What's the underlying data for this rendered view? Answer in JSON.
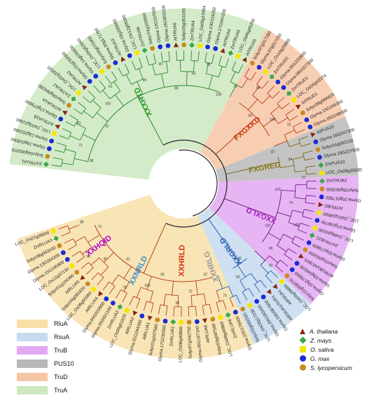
{
  "colors": {
    "RluA": "#f7dfa8",
    "RsuA": "#c6dbef",
    "TruB": "#e3a8f2",
    "PUS10": "#b8b8b8",
    "TruD": "#f7c6a6",
    "TruA": "#cde8c0",
    "outline": "#2d6a8a"
  },
  "legend_clades": [
    {
      "label": "RluA",
      "color": "#f7dfa8"
    },
    {
      "label": "RsuA",
      "color": "#c6dbef"
    },
    {
      "label": "TruB",
      "color": "#e3a8f2"
    },
    {
      "label": "PUS10",
      "color": "#b8b8b8"
    },
    {
      "label": "TruD",
      "color": "#f7c6a6"
    },
    {
      "label": "TruA",
      "color": "#cde8c0"
    }
  ],
  "legend_species": [
    {
      "label": "A. thaliana",
      "marker": "triangle",
      "color": "#8b2512"
    },
    {
      "label": "Z. mays",
      "marker": "diamond",
      "color": "#3aa84a"
    },
    {
      "label": "O. sativa",
      "marker": "square",
      "color": "#f2e600"
    },
    {
      "label": "G. max",
      "marker": "circle",
      "color": "#1a2bd6"
    },
    {
      "label": "S. lycopersicum",
      "marker": "circle",
      "color": "#c98a1e"
    }
  ],
  "clade_labels": [
    {
      "text": "XXHQID",
      "color": "#b000d8"
    },
    {
      "text": "XXNRLD",
      "color": "#3a8ec8"
    },
    {
      "text": "XXHRLD",
      "color": "#d03010"
    },
    {
      "text": "XXHRLG",
      "color": "#9a9a9a"
    },
    {
      "text": "XXGRLD",
      "color": "#2a5fb0"
    },
    {
      "text": "XXGXLD",
      "color": "#a020c0"
    },
    {
      "text": "FXGRED",
      "color": "#8a7a1a"
    },
    {
      "text": "FXGXKD",
      "color": "#c83a10"
    },
    {
      "text": "XXXRTD",
      "color": "#2a9a2a"
    }
  ],
  "leaves": [
    {
      "name": "ZmTRUA1",
      "sp": "maize",
      "group": "TruA"
    },
    {
      "name": "Solyc04g082070",
      "sp": "tomato",
      "group": "TruA"
    },
    {
      "name": "Glyma.19g018000",
      "sp": "soy",
      "group": "TruA"
    },
    {
      "name": "Glyma.13g202300",
      "sp": "soy",
      "group": "TruA"
    },
    {
      "name": "LOC_Os03g21980",
      "sp": "rice",
      "group": "TruA"
    },
    {
      "name": "AtTRUA1B",
      "sp": "ath",
      "group": "TruA"
    },
    {
      "name": "Glyma.17g075600",
      "sp": "soy",
      "group": "TruA"
    },
    {
      "name": "AtTRUA1A",
      "sp": "ath",
      "group": "TruA"
    },
    {
      "name": "Solyc06g066280",
      "sp": "tomato",
      "group": "TruA"
    },
    {
      "name": "ZmTRUA2",
      "sp": "maize",
      "group": "TruA"
    },
    {
      "name": "LOC_Os02g33020",
      "sp": "rice",
      "group": "TruA"
    },
    {
      "name": "AtTRUA2",
      "sp": "ath",
      "group": "TruA"
    },
    {
      "name": "Glyma.02g233500",
      "sp": "soy",
      "group": "TruA"
    },
    {
      "name": "Glyma.14g035600",
      "sp": "soy",
      "group": "TruA"
    },
    {
      "name": "LOC_Os04g52640",
      "sp": "rice",
      "group": "TruA"
    },
    {
      "name": "Solyc04g072400",
      "sp": "tomato",
      "group": "TruA"
    },
    {
      "name": "Glyma.20g171700",
      "sp": "soy",
      "group": "TruA"
    },
    {
      "name": "AtTRUA3",
      "sp": "ath",
      "group": "TruA"
    },
    {
      "name": "Glyma.10g220000",
      "sp": "soy",
      "group": "TruA"
    },
    {
      "name": "LOC_Os12g09290",
      "sp": "rice",
      "group": "TruA"
    },
    {
      "name": "ZmTRUA6",
      "sp": "maize",
      "group": "TruA"
    },
    {
      "name": "Solyc01g103560",
      "sp": "tomato",
      "group": "TruA"
    },
    {
      "name": "Glyma.12G167000",
      "sp": "soy",
      "group": "TruA"
    },
    {
      "name": "Glyma.16G003100",
      "sp": "soy",
      "group": "TruA"
    },
    {
      "name": "AtTRUA6",
      "sp": "ath",
      "group": "TruA"
    },
    {
      "name": "Solyc05g053190",
      "sp": "tomato",
      "group": "TruA"
    },
    {
      "name": "ZmTRUA4",
      "sp": "maize",
      "group": "TruA"
    },
    {
      "name": "LOC_Os05g19954",
      "sp": "rice",
      "group": "TruA"
    },
    {
      "name": "Glyma.13G119200",
      "sp": "soy",
      "group": "TruA"
    },
    {
      "name": "Glyma.17G041000",
      "sp": "soy",
      "group": "TruA"
    },
    {
      "name": "AtTRUA4",
      "sp": "ath",
      "group": "TruA"
    },
    {
      "name": "ZmTRUA5",
      "sp": "maize",
      "group": "TruA"
    },
    {
      "name": "LOC_Os06g45250",
      "sp": "rice",
      "group": "TruA"
    },
    {
      "name": "AtTRUA5",
      "sp": "ath",
      "group": "TruA"
    },
    {
      "name": "Solyc07g017260",
      "sp": "tomato",
      "group": "TruD"
    },
    {
      "name": "Glyma.07g017250",
      "sp": "soy",
      "group": "TruD"
    },
    {
      "name": "LOC_Os10g20880",
      "sp": "rice",
      "group": "TruD"
    },
    {
      "name": "ZmTRUD2",
      "sp": "maize",
      "group": "TruD"
    },
    {
      "name": "Glyma.05G220800",
      "sp": "soy",
      "group": "TruD"
    },
    {
      "name": "Glyma.08G027300",
      "sp": "soy",
      "group": "TruD"
    },
    {
      "name": "ZmTRUD1",
      "sp": "maize",
      "group": "TruD"
    },
    {
      "name": "LOC_Os04g43374",
      "sp": "rice",
      "group": "TruD"
    },
    {
      "name": "AtTRUD1",
      "sp": "ath",
      "group": "TruD"
    },
    {
      "name": "Solyc08g066620",
      "sp": "tomato",
      "group": "TruD"
    },
    {
      "name": "Glyma.15G245300",
      "sp": "soy",
      "group": "TruD"
    },
    {
      "name": "Glyma.16G248000",
      "sp": "soy",
      "group": "TruD"
    },
    {
      "name": "AtPUS10",
      "sp": "ath",
      "group": "PUS10"
    },
    {
      "name": "Glyma.16G047300",
      "sp": "soy",
      "group": "PUS10"
    },
    {
      "name": "Solyc04g082130",
      "sp": "tomato",
      "group": "PUS10"
    },
    {
      "name": "Glyma.19G227900",
      "sp": "soy",
      "group": "PUS10"
    },
    {
      "name": "ZmPUS10",
      "sp": "maize",
      "group": "PUS10"
    },
    {
      "name": "LOC_Os09g33530",
      "sp": "rice",
      "group": "PUS10"
    },
    {
      "name": "ZmTRUB2",
      "sp": "maize",
      "group": "TruB"
    },
    {
      "name": "Solyc05g002550",
      "sp": "tomato",
      "group": "TruB"
    },
    {
      "name": "Glyma.20g017500",
      "sp": "soy",
      "group": "TruB"
    },
    {
      "name": "AtTRUB2",
      "sp": "ath",
      "group": "TruB"
    },
    {
      "name": "LOC_Os01g18500",
      "sp": "rice",
      "group": "TruB"
    },
    {
      "name": "Glyma.07g248700",
      "sp": "soy",
      "group": "TruB"
    },
    {
      "name": "LOC_Os06g34190",
      "sp": "rice",
      "group": "TruB"
    },
    {
      "name": "ZmTRUB1C",
      "sp": "maize",
      "group": "TruB"
    },
    {
      "name": "Glyma.02g179800",
      "sp": "soy",
      "group": "TruB"
    },
    {
      "name": "Solyc01g091650",
      "sp": "tomato",
      "group": "TruB"
    },
    {
      "name": "AtTRUB1A/CBF5",
      "sp": "ath",
      "group": "TruB"
    },
    {
      "name": "Glyma.03g048100",
      "sp": "soy",
      "group": "TruB"
    },
    {
      "name": "Glyma.10g179600",
      "sp": "soy",
      "group": "TruB"
    },
    {
      "name": "Solyc11g008770",
      "sp": "tomato",
      "group": "TruB"
    },
    {
      "name": "LOC_Os03g39690",
      "sp": "rice",
      "group": "RsuA"
    },
    {
      "name": "AtRSUA1",
      "sp": "ath",
      "group": "RsuA"
    },
    {
      "name": "AtRSUA1/SVR1",
      "sp": "ath",
      "group": "RsuA"
    },
    {
      "name": "Glyma.10G087600",
      "sp": "soy",
      "group": "RsuA"
    },
    {
      "name": "Glyma.20G183400",
      "sp": "soy",
      "group": "RsuA"
    },
    {
      "name": "LOC_Os03g17230",
      "sp": "rice",
      "group": "RsuA"
    },
    {
      "name": "Solyc02g082520",
      "sp": "tomato",
      "group": "RsuA"
    },
    {
      "name": "Glyma.20G178400",
      "sp": "soy",
      "group": "RluA"
    },
    {
      "name": "ZmRLUA6",
      "sp": "maize",
      "group": "RluA"
    },
    {
      "name": "LOC_Os08g40860",
      "sp": "rice",
      "group": "RluA"
    },
    {
      "name": "Solyc03g097550",
      "sp": "tomato",
      "group": "RluA"
    },
    {
      "name": "AtRLUA6",
      "sp": "ath",
      "group": "RluA"
    },
    {
      "name": "Glyma.06G167100",
      "sp": "soy",
      "group": "RluA"
    },
    {
      "name": "Solyc07g042750",
      "sp": "tomato",
      "group": "RluA"
    },
    {
      "name": "LOC_Os08g40860",
      "sp": "rice",
      "group": "RluA"
    },
    {
      "name": "ZmRLUA1",
      "sp": "maize",
      "group": "RluA"
    },
    {
      "name": "Glyma.17G232000",
      "sp": "soy",
      "group": "RluA"
    },
    {
      "name": "Solyc01g107580",
      "sp": "tomato",
      "group": "RluA"
    },
    {
      "name": "AtRLUA1",
      "sp": "ath",
      "group": "RluA"
    },
    {
      "name": "Glyma.01G244300",
      "sp": "soy",
      "group": "RluA"
    },
    {
      "name": "AtRLUA2",
      "sp": "ath",
      "group": "RluA"
    },
    {
      "name": "LOC_Os09g01620",
      "sp": "rice",
      "group": "RluA"
    },
    {
      "name": "ZmRLUA2",
      "sp": "maize",
      "group": "RluA"
    },
    {
      "name": "Glyma.05G021100",
      "sp": "soy",
      "group": "RluA"
    },
    {
      "name": "Glyma.04G020600",
      "sp": "soy",
      "group": "RluA"
    },
    {
      "name": "AtRLUA4",
      "sp": "ath",
      "group": "RluA"
    },
    {
      "name": "LOC_Os06g50360",
      "sp": "rice",
      "group": "RluA"
    },
    {
      "name": "Solyc04g081820",
      "sp": "tomato",
      "group": "RluA"
    },
    {
      "name": "AtRLUA5",
      "sp": "ath",
      "group": "RluA"
    },
    {
      "name": "Solyc01g104360",
      "sp": "tomato",
      "group": "RluA"
    },
    {
      "name": "LOC_Os12g37130",
      "sp": "rice",
      "group": "RluA"
    },
    {
      "name": "Glyma.15G195900",
      "sp": "soy",
      "group": "RluA"
    },
    {
      "name": "Glyma.13G264300",
      "sp": "soy",
      "group": "RluA"
    },
    {
      "name": "Solyc08g062030",
      "sp": "tomato",
      "group": "RluA"
    },
    {
      "name": "ZmRLUA3",
      "sp": "maize",
      "group": "RluA"
    },
    {
      "name": "LOC_Os07g36600",
      "sp": "rice",
      "group": "RluA"
    }
  ],
  "bootstrap": [
    "98",
    "71",
    "91",
    "97",
    "100",
    "51",
    "77",
    "95",
    "90",
    "98",
    "65",
    "56",
    "100",
    "71",
    "99",
    "60",
    "100",
    "91",
    "87",
    "54",
    "57",
    "100",
    "74",
    "100",
    "100",
    "99",
    "93",
    "82",
    "83",
    "70",
    "67",
    "72",
    "99",
    "95",
    "100",
    "78",
    "62",
    "91",
    "98",
    "71",
    "98"
  ]
}
